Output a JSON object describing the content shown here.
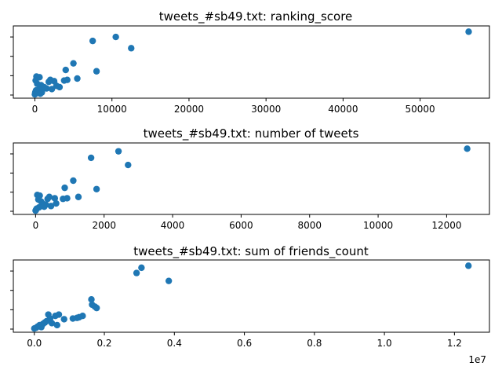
{
  "colors": {
    "marker": "#1f77b4",
    "axis": "#000000",
    "background": "#ffffff"
  },
  "chart_data": [
    {
      "type": "scatter",
      "title": "tweets_#sb49.txt: ranking_score",
      "xlabel": "",
      "ylabel": "",
      "xlim": [
        -2800,
        59000
      ],
      "ylim": [
        0,
        1
      ],
      "xticks": [
        0,
        10000,
        20000,
        30000,
        40000,
        50000
      ],
      "xtick_labels": [
        "0",
        "10000",
        "20000",
        "30000",
        "40000",
        "50000"
      ],
      "ytick_count": 4,
      "points": [
        {
          "x": 56300,
          "y": 0.96
        },
        {
          "x": 10500,
          "y": 0.88
        },
        {
          "x": 7500,
          "y": 0.82
        },
        {
          "x": 12500,
          "y": 0.71
        },
        {
          "x": 5000,
          "y": 0.48
        },
        {
          "x": 4000,
          "y": 0.38
        },
        {
          "x": 8000,
          "y": 0.36
        },
        {
          "x": 5500,
          "y": 0.25
        },
        {
          "x": 4200,
          "y": 0.23
        },
        {
          "x": 3800,
          "y": 0.22
        },
        {
          "x": 2500,
          "y": 0.21
        },
        {
          "x": 2000,
          "y": 0.23
        },
        {
          "x": 1800,
          "y": 0.2
        },
        {
          "x": 2800,
          "y": 0.14
        },
        {
          "x": 3200,
          "y": 0.12
        },
        {
          "x": 1500,
          "y": 0.1
        },
        {
          "x": 2200,
          "y": 0.09
        },
        {
          "x": 600,
          "y": 0.27
        },
        {
          "x": 200,
          "y": 0.28
        },
        {
          "x": 100,
          "y": 0.22
        },
        {
          "x": 300,
          "y": 0.17
        },
        {
          "x": 800,
          "y": 0.15
        },
        {
          "x": 1200,
          "y": 0.12
        },
        {
          "x": 500,
          "y": 0.08
        },
        {
          "x": 150,
          "y": 0.07
        },
        {
          "x": 50,
          "y": 0.04
        },
        {
          "x": 400,
          "y": 0.05
        },
        {
          "x": 900,
          "y": 0.04
        },
        {
          "x": 700,
          "y": 0.02
        },
        {
          "x": 0,
          "y": 0.01
        }
      ]
    },
    {
      "type": "scatter",
      "title": "tweets_#sb49.txt: number of tweets",
      "xlabel": "",
      "ylabel": "",
      "xlim": [
        -650,
        13250
      ],
      "ylim": [
        0,
        1
      ],
      "xticks": [
        0,
        2000,
        4000,
        6000,
        8000,
        10000,
        12000
      ],
      "xtick_labels": [
        "0",
        "2000",
        "4000",
        "6000",
        "8000",
        "10000",
        "12000"
      ],
      "ytick_count": 4,
      "points": [
        {
          "x": 12600,
          "y": 0.96
        },
        {
          "x": 2420,
          "y": 0.92
        },
        {
          "x": 1620,
          "y": 0.82
        },
        {
          "x": 2700,
          "y": 0.71
        },
        {
          "x": 1100,
          "y": 0.47
        },
        {
          "x": 850,
          "y": 0.36
        },
        {
          "x": 1780,
          "y": 0.34
        },
        {
          "x": 1250,
          "y": 0.22
        },
        {
          "x": 920,
          "y": 0.2
        },
        {
          "x": 800,
          "y": 0.19
        },
        {
          "x": 560,
          "y": 0.2
        },
        {
          "x": 400,
          "y": 0.22
        },
        {
          "x": 350,
          "y": 0.19
        },
        {
          "x": 600,
          "y": 0.12
        },
        {
          "x": 300,
          "y": 0.1
        },
        {
          "x": 450,
          "y": 0.08
        },
        {
          "x": 200,
          "y": 0.12
        },
        {
          "x": 50,
          "y": 0.25
        },
        {
          "x": 120,
          "y": 0.24
        },
        {
          "x": 80,
          "y": 0.18
        },
        {
          "x": 160,
          "y": 0.15
        },
        {
          "x": 250,
          "y": 0.07
        },
        {
          "x": 100,
          "y": 0.06
        },
        {
          "x": 30,
          "y": 0.04
        },
        {
          "x": 10,
          "y": 0.02
        },
        {
          "x": 0,
          "y": 0.01
        }
      ]
    },
    {
      "type": "scatter",
      "title": "tweets_#sb49.txt: sum of friends_count",
      "xlabel": "",
      "ylabel": "",
      "xlim": [
        -0.06,
        1.3
      ],
      "ylim": [
        0,
        1
      ],
      "xticks": [
        0.0,
        0.2,
        0.4,
        0.6,
        0.8,
        1.0,
        1.2
      ],
      "xtick_labels": [
        "0.0",
        "0.2",
        "0.4",
        "0.6",
        "0.8",
        "1.0",
        "1.2"
      ],
      "x_offset_label": "1e7",
      "ytick_count": 4,
      "points": [
        {
          "x": 1.24,
          "y": 0.96
        },
        {
          "x": 0.306,
          "y": 0.93
        },
        {
          "x": 0.292,
          "y": 0.85
        },
        {
          "x": 0.384,
          "y": 0.73
        },
        {
          "x": 0.163,
          "y": 0.45
        },
        {
          "x": 0.165,
          "y": 0.37
        },
        {
          "x": 0.173,
          "y": 0.34
        },
        {
          "x": 0.178,
          "y": 0.32
        },
        {
          "x": 0.138,
          "y": 0.2
        },
        {
          "x": 0.128,
          "y": 0.18
        },
        {
          "x": 0.122,
          "y": 0.17
        },
        {
          "x": 0.11,
          "y": 0.16
        },
        {
          "x": 0.085,
          "y": 0.15
        },
        {
          "x": 0.07,
          "y": 0.22
        },
        {
          "x": 0.06,
          "y": 0.2
        },
        {
          "x": 0.04,
          "y": 0.22
        },
        {
          "x": 0.045,
          "y": 0.16
        },
        {
          "x": 0.035,
          "y": 0.12
        },
        {
          "x": 0.03,
          "y": 0.1
        },
        {
          "x": 0.05,
          "y": 0.09
        },
        {
          "x": 0.065,
          "y": 0.06
        },
        {
          "x": 0.025,
          "y": 0.08
        },
        {
          "x": 0.015,
          "y": 0.06
        },
        {
          "x": 0.01,
          "y": 0.04
        },
        {
          "x": 0.005,
          "y": 0.02
        },
        {
          "x": 0.0,
          "y": 0.01
        },
        {
          "x": 0.02,
          "y": 0.03
        }
      ]
    }
  ]
}
